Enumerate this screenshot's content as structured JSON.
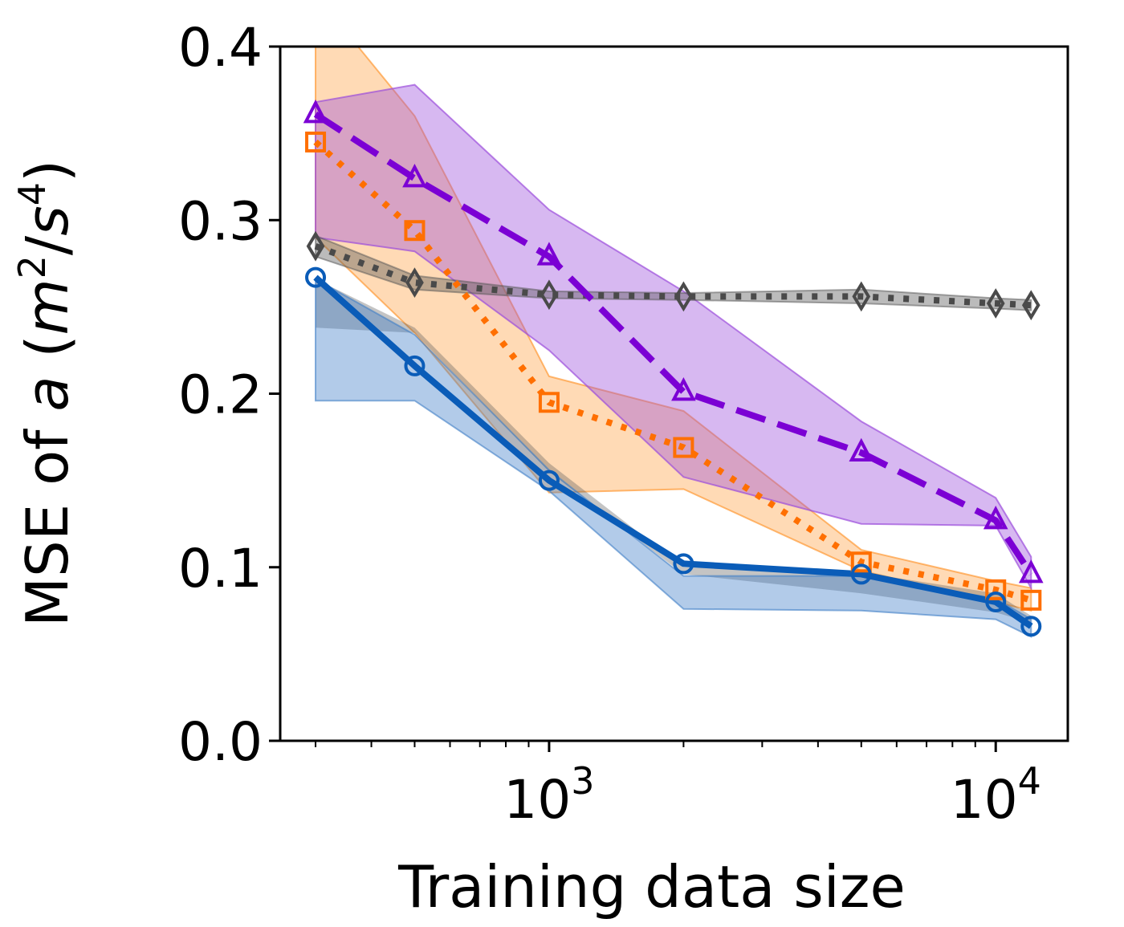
{
  "chart_data": {
    "type": "line",
    "xlabel": "Training data size",
    "ylabel": {
      "prefix": "MSE of ",
      "var": "a",
      "open": " (",
      "unit_m": "m",
      "exp_m": "2",
      "slash": "/",
      "unit_s": "s",
      "exp_s": "4",
      "close": ")"
    },
    "xscale": "log",
    "xlim": [
      250,
      14500
    ],
    "ylim": [
      0,
      0.4
    ],
    "yticks": [
      {
        "value": 0.0,
        "label": "0.0"
      },
      {
        "value": 0.1,
        "label": "0.1"
      },
      {
        "value": 0.2,
        "label": "0.2"
      },
      {
        "value": 0.3,
        "label": "0.3"
      },
      {
        "value": 0.4,
        "label": "0.4"
      }
    ],
    "xticks_major": [
      {
        "value": 1000,
        "base": "10",
        "exp": "3"
      },
      {
        "value": 10000,
        "base": "10",
        "exp": "4"
      }
    ],
    "xticks_minor": [
      300,
      400,
      500,
      600,
      700,
      800,
      900,
      2000,
      3000,
      4000,
      5000,
      6000,
      7000,
      8000,
      9000
    ],
    "grid": false,
    "legend": "none",
    "x": [
      300,
      500,
      1000,
      2000,
      5000,
      10000,
      12000
    ],
    "series": [
      {
        "color": "#ff7f0e",
        "line_color": "#ff6f00",
        "band_color": "#ff8c1a",
        "band_opacity": 0.32,
        "linestyle": "dotted",
        "marker": "square",
        "values": [
          0.345,
          0.294,
          0.195,
          0.169,
          0.103,
          0.087,
          0.081
        ],
        "upper": [
          0.43,
          0.36,
          0.21,
          0.19,
          0.11,
          0.092,
          0.088
        ],
        "lower": [
          0.29,
          0.235,
          0.143,
          0.145,
          0.098,
          0.08,
          0.075
        ]
      },
      {
        "color": "#7b00d4",
        "line_color": "#7b00d4",
        "band_color": "#9b4ddc",
        "band_opacity": 0.4,
        "linestyle": "dashed",
        "marker": "triangle",
        "values": [
          0.361,
          0.324,
          0.279,
          0.201,
          0.166,
          0.127,
          0.096
        ],
        "upper": [
          0.368,
          0.378,
          0.306,
          0.259,
          0.184,
          0.14,
          0.106
        ],
        "lower": [
          0.29,
          0.282,
          0.225,
          0.152,
          0.125,
          0.124,
          0.088
        ]
      },
      {
        "color": "#4a4a4a",
        "line_color": "#4a4a4a",
        "band_color": "#555555",
        "band_opacity": 0.4,
        "linestyle": "dotted",
        "marker": "diamond",
        "values": [
          0.285,
          0.264,
          0.257,
          0.256,
          0.256,
          0.252,
          0.251
        ],
        "upper": [
          0.291,
          0.268,
          0.259,
          0.258,
          0.26,
          0.255,
          0.254
        ],
        "lower": [
          0.238,
          0.235,
          0.155,
          0.096,
          0.085,
          0.074,
          0.068
        ],
        "band_upper_full": [
          0.291,
          0.268,
          0.259,
          0.258,
          0.26,
          0.255,
          0.254
        ],
        "band_lower_full": [
          0.279,
          0.26,
          0.255,
          0.254,
          0.252,
          0.249,
          0.248
        ]
      },
      {
        "color": "#0a5cb8",
        "line_color": "#0a5cb8",
        "band_color": "#3f7ec7",
        "band_opacity": 0.4,
        "linestyle": "solid",
        "marker": "circle",
        "values": [
          0.267,
          0.216,
          0.15,
          0.102,
          0.096,
          0.08,
          0.066
        ],
        "upper": [
          0.266,
          0.234,
          0.156,
          0.095,
          0.095,
          0.082,
          0.07
        ],
        "lower": [
          0.196,
          0.196,
          0.144,
          0.076,
          0.075,
          0.07,
          0.06
        ]
      }
    ],
    "gray_band": {
      "color": "#555555",
      "opacity": 0.35,
      "upper": [
        0.266,
        0.238,
        0.16,
        0.1,
        0.097,
        0.085,
        0.072
      ],
      "lower": [
        0.238,
        0.235,
        0.155,
        0.096,
        0.085,
        0.074,
        0.068
      ]
    }
  }
}
